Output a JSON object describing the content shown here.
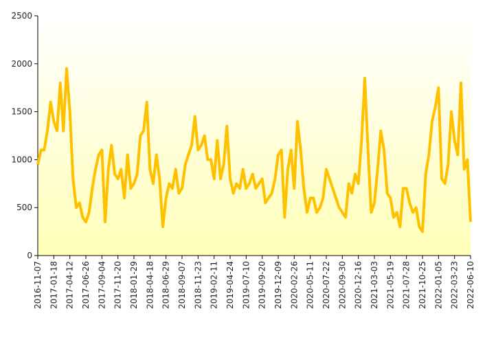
{
  "chart_data": {
    "type": "line",
    "categories": [
      "2016-11-07",
      null,
      null,
      null,
      null,
      "2017-01-18",
      null,
      null,
      null,
      null,
      "2017-04-12",
      null,
      null,
      null,
      null,
      "2017-06-26",
      null,
      null,
      null,
      null,
      "2017-09-04",
      null,
      null,
      null,
      null,
      "2017-11-20",
      null,
      null,
      null,
      null,
      "2018-01-29",
      null,
      null,
      null,
      null,
      "2018-04-18",
      null,
      null,
      null,
      null,
      "2018-06-29",
      null,
      null,
      null,
      null,
      "2018-09-07",
      null,
      null,
      null,
      null,
      "2018-11-23",
      null,
      null,
      null,
      null,
      "2019-02-11",
      null,
      null,
      null,
      null,
      "2019-04-24",
      null,
      null,
      null,
      null,
      "2019-07-10",
      null,
      null,
      null,
      null,
      "2019-09-20",
      null,
      null,
      null,
      null,
      "2019-12-09",
      null,
      null,
      null,
      null,
      "2020-02-26",
      null,
      null,
      null,
      null,
      "2020-05-11",
      null,
      null,
      null,
      null,
      "2020-07-22",
      null,
      null,
      null,
      null,
      "2020-09-30",
      null,
      null,
      null,
      null,
      "2020-12-16",
      null,
      null,
      null,
      null,
      "2021-03-03",
      null,
      null,
      null,
      null,
      "2021-05-19",
      null,
      null,
      null,
      null,
      "2021-07-28",
      null,
      null,
      null,
      null,
      "2021-10-25",
      null,
      null,
      null,
      null,
      "2022-01-05",
      null,
      null,
      null,
      null,
      "2022-03-23",
      null,
      null,
      null,
      null,
      "2022-06-10"
    ],
    "values": [
      950,
      1100,
      1100,
      1300,
      1600,
      1400,
      1300,
      1800,
      1300,
      1950,
      1500,
      800,
      500,
      550,
      400,
      350,
      450,
      700,
      900,
      1050,
      1100,
      350,
      900,
      1150,
      850,
      800,
      900,
      600,
      1050,
      700,
      750,
      850,
      1250,
      1300,
      1600,
      900,
      750,
      1050,
      800,
      300,
      600,
      750,
      700,
      900,
      650,
      700,
      950,
      1050,
      1150,
      1450,
      1100,
      1150,
      1250,
      1000,
      1000,
      800,
      1200,
      800,
      950,
      1350,
      800,
      650,
      750,
      700,
      900,
      700,
      750,
      850,
      700,
      750,
      800,
      550,
      600,
      650,
      800,
      1050,
      1100,
      400,
      900,
      1100,
      700,
      1400,
      1100,
      700,
      450,
      600,
      600,
      450,
      500,
      600,
      900,
      800,
      700,
      600,
      500,
      450,
      400,
      750,
      650,
      850,
      750,
      1200,
      1850,
      1100,
      450,
      550,
      900,
      1300,
      1100,
      650,
      600,
      400,
      450,
      300,
      700,
      700,
      550,
      450,
      500,
      300,
      250,
      850,
      1050,
      1400,
      1550,
      1750,
      800,
      750,
      950,
      1500,
      1200,
      1050,
      1800,
      900,
      1000,
      350
    ],
    "color": "#ffc000",
    "ylim": [
      0,
      2500
    ],
    "yticks": [
      0,
      500,
      1000,
      1500,
      2000,
      2500
    ]
  }
}
